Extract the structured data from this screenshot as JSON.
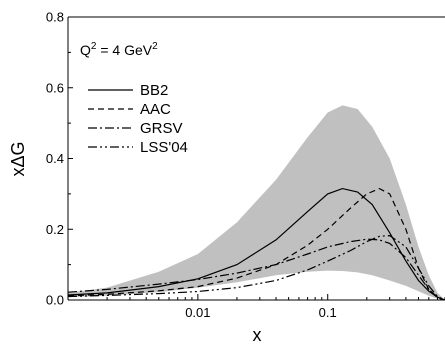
{
  "chart_data": {
    "type": "line",
    "title": "",
    "annotation": {
      "main": "Q",
      "sup1": "2",
      "mid": " = 4 GeV",
      "sup2": "2"
    },
    "xlabel": "x",
    "ylabel": "xΔG",
    "xscale": "log",
    "xlim": [
      0.001,
      0.8
    ],
    "ylim": [
      0.0,
      0.8
    ],
    "x_ticks": [
      {
        "value": 0.01,
        "label": "0.01"
      },
      {
        "value": 0.1,
        "label": "0.1"
      }
    ],
    "y_ticks": [
      {
        "value": 0.0,
        "label": "0.0"
      },
      {
        "value": 0.2,
        "label": "0.2"
      },
      {
        "value": 0.4,
        "label": "0.4"
      },
      {
        "value": 0.6,
        "label": "0.6"
      },
      {
        "value": 0.8,
        "label": "0.8"
      }
    ],
    "legend_placement": "upper-left",
    "band": {
      "color": "#c0c0c0",
      "x": [
        0.001,
        0.002,
        0.005,
        0.01,
        0.02,
        0.04,
        0.07,
        0.1,
        0.13,
        0.17,
        0.22,
        0.3,
        0.4,
        0.5,
        0.6,
        0.7,
        0.8
      ],
      "upper": [
        0.02,
        0.035,
        0.08,
        0.13,
        0.22,
        0.34,
        0.46,
        0.53,
        0.55,
        0.54,
        0.49,
        0.4,
        0.27,
        0.15,
        0.07,
        0.02,
        0.0
      ],
      "lower": [
        0.008,
        0.012,
        0.022,
        0.035,
        0.05,
        0.07,
        0.08,
        0.083,
        0.082,
        0.078,
        0.07,
        0.055,
        0.04,
        0.025,
        0.012,
        0.004,
        0.0
      ]
    },
    "series": [
      {
        "name": "BB2",
        "dash": "",
        "x": [
          0.001,
          0.002,
          0.005,
          0.01,
          0.02,
          0.04,
          0.07,
          0.1,
          0.13,
          0.17,
          0.22,
          0.3,
          0.4,
          0.5,
          0.6,
          0.7,
          0.8
        ],
        "values": [
          0.014,
          0.02,
          0.038,
          0.06,
          0.1,
          0.17,
          0.25,
          0.3,
          0.315,
          0.305,
          0.27,
          0.19,
          0.11,
          0.055,
          0.025,
          0.008,
          0.0
        ]
      },
      {
        "name": "AAC",
        "dash": "6,4",
        "x": [
          0.001,
          0.002,
          0.005,
          0.01,
          0.02,
          0.04,
          0.07,
          0.1,
          0.15,
          0.2,
          0.25,
          0.3,
          0.4,
          0.5,
          0.6,
          0.7,
          0.8
        ],
        "values": [
          0.012,
          0.016,
          0.026,
          0.038,
          0.062,
          0.1,
          0.155,
          0.2,
          0.26,
          0.3,
          0.315,
          0.3,
          0.2,
          0.09,
          0.03,
          0.006,
          0.0
        ]
      },
      {
        "name": "GRSV",
        "dash": "9,3,2,3",
        "x": [
          0.001,
          0.002,
          0.005,
          0.01,
          0.02,
          0.04,
          0.07,
          0.1,
          0.15,
          0.2,
          0.25,
          0.3,
          0.4,
          0.5,
          0.6,
          0.7,
          0.8
        ],
        "values": [
          0.022,
          0.03,
          0.045,
          0.058,
          0.076,
          0.1,
          0.13,
          0.15,
          0.165,
          0.172,
          0.17,
          0.16,
          0.12,
          0.07,
          0.03,
          0.008,
          0.0
        ]
      },
      {
        "name": "LSS'04",
        "dash": "9,3,2,3,2,3",
        "x": [
          0.001,
          0.002,
          0.005,
          0.01,
          0.02,
          0.04,
          0.07,
          0.1,
          0.15,
          0.2,
          0.25,
          0.3,
          0.4,
          0.5,
          0.6,
          0.7,
          0.8
        ],
        "values": [
          0.01,
          0.013,
          0.018,
          0.024,
          0.035,
          0.055,
          0.085,
          0.11,
          0.14,
          0.165,
          0.18,
          0.182,
          0.15,
          0.09,
          0.04,
          0.01,
          0.0
        ]
      }
    ]
  }
}
